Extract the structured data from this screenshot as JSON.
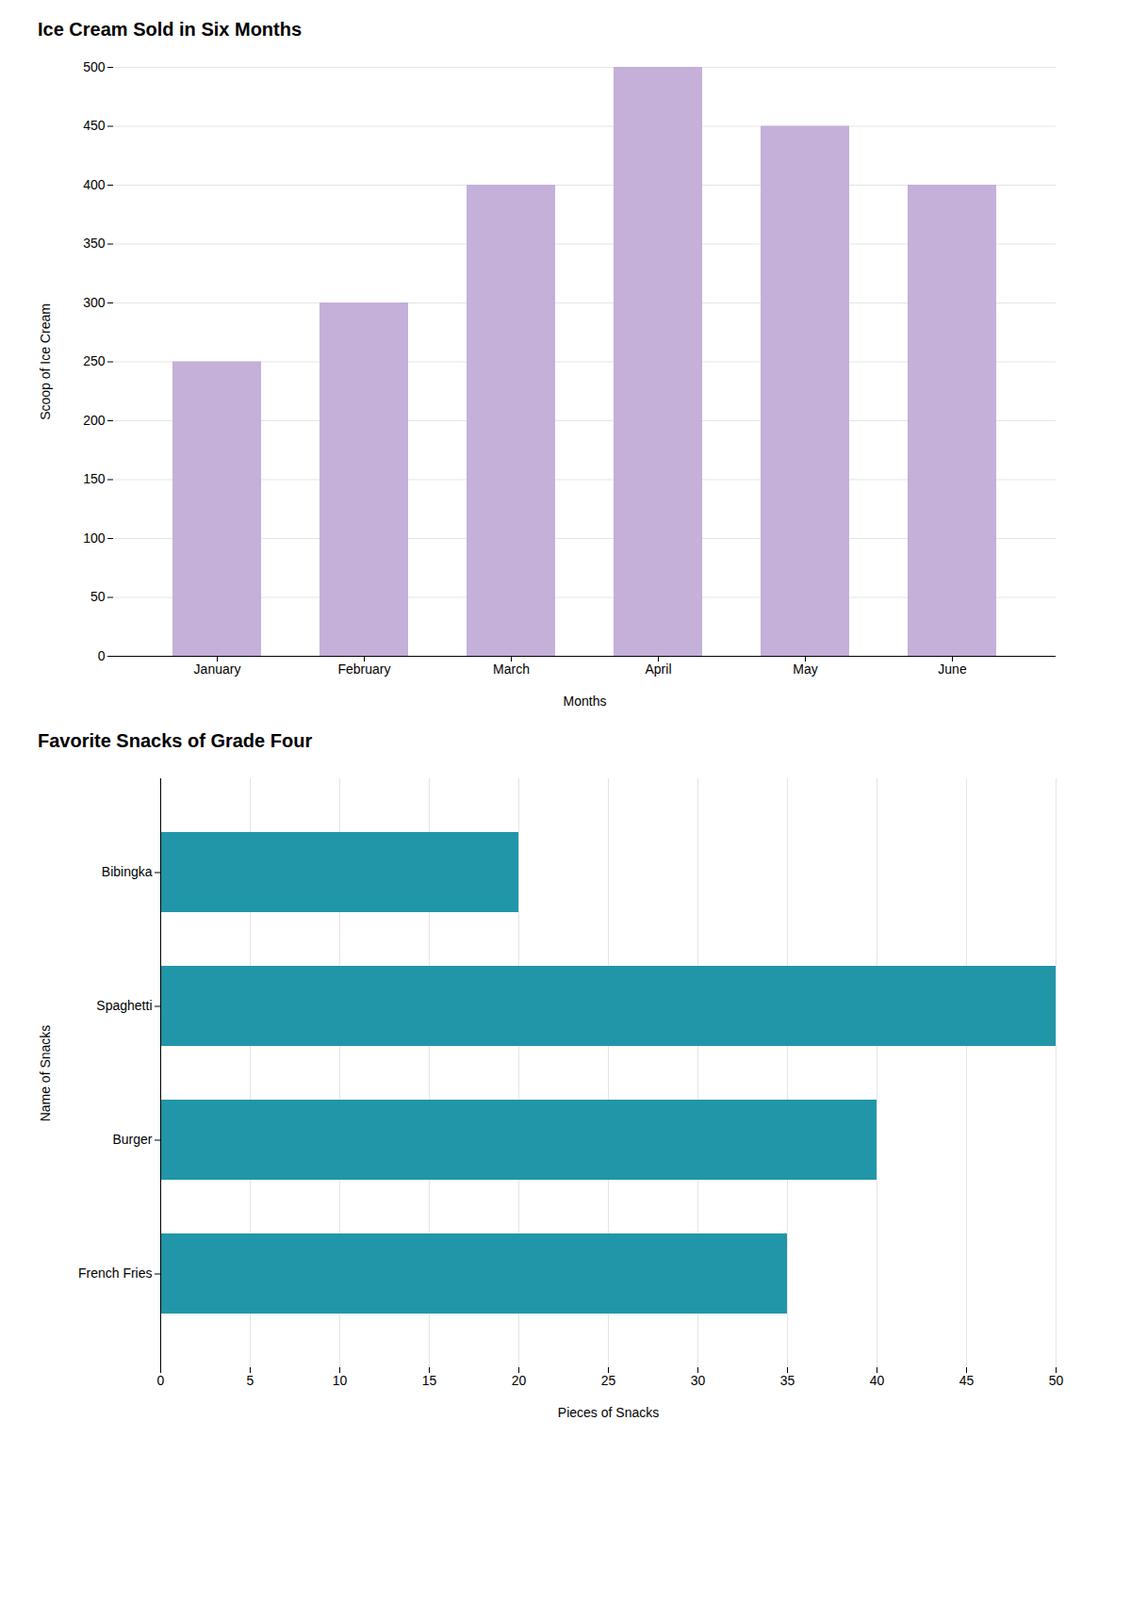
{
  "chart_data": [
    {
      "type": "bar",
      "title": "Ice Cream Sold in Six Months",
      "xlabel": "Months",
      "ylabel": "Scoop of Ice Cream",
      "categories": [
        "January",
        "February",
        "March",
        "April",
        "May",
        "June"
      ],
      "values": [
        250,
        300,
        400,
        500,
        450,
        400
      ],
      "color": "#c4b0d8",
      "ylim": [
        0,
        500
      ],
      "yticks": [
        0,
        50,
        100,
        150,
        200,
        250,
        300,
        350,
        400,
        450,
        500
      ],
      "grid": true
    },
    {
      "type": "bar",
      "orientation": "horizontal",
      "title": "Favorite Snacks of Grade Four",
      "xlabel": "Pieces of Snacks",
      "ylabel": "Name of Snacks",
      "categories": [
        "French Fries",
        "Burger",
        "Spaghetti",
        "Bibingka"
      ],
      "values": [
        35,
        40,
        50,
        20
      ],
      "color": "#2196a8",
      "xlim": [
        0,
        50
      ],
      "xticks": [
        0,
        5,
        10,
        15,
        20,
        25,
        30,
        35,
        40,
        45,
        50
      ],
      "grid": true
    }
  ]
}
